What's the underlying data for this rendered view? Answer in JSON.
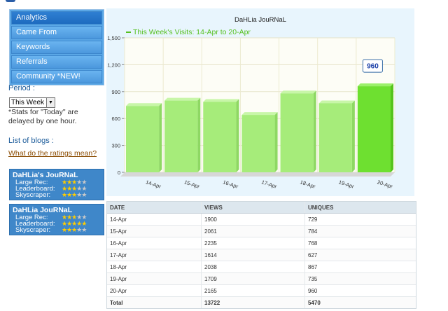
{
  "nav": {
    "items": [
      {
        "label": "Analytics",
        "active": true
      },
      {
        "label": "Came From",
        "active": false
      },
      {
        "label": "Keywords",
        "active": false
      },
      {
        "label": "Referrals",
        "active": false
      },
      {
        "label": "Community *NEW!",
        "active": false
      }
    ]
  },
  "period": {
    "label": "Period :",
    "selected": "This Week",
    "note": "*Stats for \"Today\" are delayed by one hour."
  },
  "blogs": {
    "heading": "List of blogs :",
    "ratings_link": "What do the ratings mean?",
    "entries": [
      {
        "name": "DaHLia's JouRNaL",
        "ratings": [
          {
            "label": "Large Rec:",
            "stars": 3
          },
          {
            "label": "Leaderboard:",
            "stars": 3
          },
          {
            "label": "Skyscraper:",
            "stars": 3
          }
        ]
      },
      {
        "name": "DaHLia JouRNaL",
        "ratings": [
          {
            "label": "Large Rec:",
            "stars": 3
          },
          {
            "label": "Leaderboard:",
            "stars": 5
          },
          {
            "label": "Skyscraper:",
            "stars": 3
          }
        ]
      }
    ]
  },
  "chart_data": {
    "type": "bar",
    "title": "DaHLia JouRNaL",
    "legend": "This Week's Visits: 14-Apr to 20-Apr",
    "categories": [
      "14-Apr",
      "15-Apr",
      "16-Apr",
      "17-Apr",
      "18-Apr",
      "19-Apr",
      "20-Apr"
    ],
    "values": [
      740,
      800,
      785,
      640,
      880,
      770,
      960
    ],
    "highlight_index": 6,
    "highlight_label": "960",
    "yticks": [
      0,
      300,
      600,
      900,
      "1,200",
      "1,500"
    ],
    "ylim": [
      0,
      1500
    ],
    "grid": true,
    "colors": {
      "bar": "#9ee86f",
      "highlight": "#66dd2a",
      "legend": "#56c020"
    }
  },
  "table": {
    "headers": [
      "DATE",
      "VIEWS",
      "UNIQUES"
    ],
    "rows": [
      [
        "14-Apr",
        "1900",
        "729"
      ],
      [
        "15-Apr",
        "2061",
        "784"
      ],
      [
        "16-Apr",
        "2235",
        "768"
      ],
      [
        "17-Apr",
        "1614",
        "627"
      ],
      [
        "18-Apr",
        "2038",
        "867"
      ],
      [
        "19-Apr",
        "1709",
        "735"
      ],
      [
        "20-Apr",
        "2165",
        "960"
      ]
    ],
    "total": [
      "Total",
      "13722",
      "5470"
    ]
  }
}
